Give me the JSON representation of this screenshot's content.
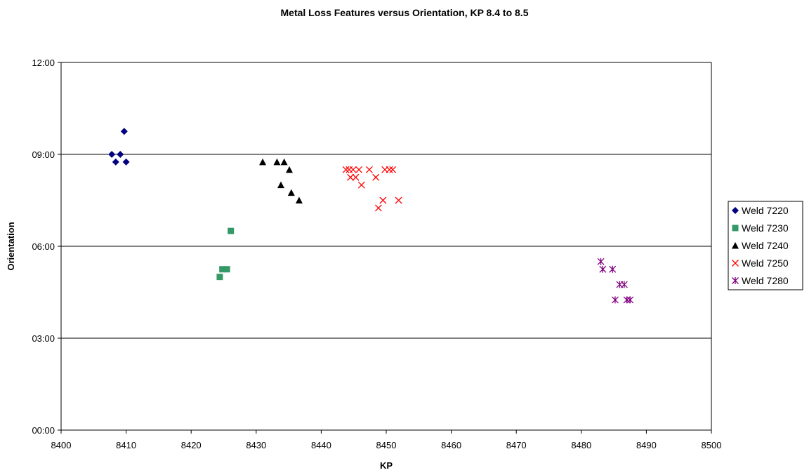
{
  "chart_data": {
    "type": "scatter",
    "title": "Metal Loss Features versus Orientation, KP 8.4 to 8.5",
    "xlabel": "KP",
    "ylabel": "Orientation",
    "xlim": [
      8400,
      8500
    ],
    "ylim": [
      0,
      12
    ],
    "x_ticks": [
      8400,
      8410,
      8420,
      8430,
      8440,
      8450,
      8460,
      8470,
      8480,
      8490,
      8500
    ],
    "y_ticks": [
      {
        "value": 0,
        "label": "00:00"
      },
      {
        "value": 3,
        "label": "03:00"
      },
      {
        "value": 6,
        "label": "06:00"
      },
      {
        "value": 9,
        "label": "09:00"
      },
      {
        "value": 12,
        "label": "12:00"
      }
    ],
    "grid": "horizontal",
    "legend_position": "right",
    "series": [
      {
        "name": "Weld 7220",
        "marker": "diamond",
        "color": "#000080",
        "points": [
          [
            8407.8,
            9.0
          ],
          [
            8408.4,
            8.75
          ],
          [
            8409.1,
            9.0
          ],
          [
            8409.7,
            9.75
          ],
          [
            8410.0,
            8.75
          ]
        ]
      },
      {
        "name": "Weld 7230",
        "marker": "square",
        "color": "#339966",
        "points": [
          [
            8424.4,
            5.0
          ],
          [
            8424.8,
            5.25
          ],
          [
            8425.5,
            5.25
          ],
          [
            8426.1,
            6.5
          ]
        ]
      },
      {
        "name": "Weld 7240",
        "marker": "triangle",
        "color": "#000000",
        "points": [
          [
            8431.0,
            8.75
          ],
          [
            8433.2,
            8.75
          ],
          [
            8433.8,
            8.0
          ],
          [
            8434.3,
            8.75
          ],
          [
            8435.1,
            8.5
          ],
          [
            8435.4,
            7.75
          ],
          [
            8436.6,
            7.5
          ]
        ]
      },
      {
        "name": "Weld 7250",
        "marker": "x",
        "color": "#ff0000",
        "points": [
          [
            8443.8,
            8.5
          ],
          [
            8444.3,
            8.5
          ],
          [
            8444.5,
            8.25
          ],
          [
            8444.9,
            8.5
          ],
          [
            8445.3,
            8.25
          ],
          [
            8445.8,
            8.5
          ],
          [
            8446.2,
            8.0
          ],
          [
            8447.4,
            8.5
          ],
          [
            8448.4,
            8.25
          ],
          [
            8448.8,
            7.25
          ],
          [
            8449.5,
            7.5
          ],
          [
            8449.8,
            8.5
          ],
          [
            8450.5,
            8.5
          ],
          [
            8451.0,
            8.5
          ],
          [
            8451.9,
            7.5
          ]
        ]
      },
      {
        "name": "Weld 7280",
        "marker": "star",
        "color": "#800080",
        "points": [
          [
            8483.0,
            5.5
          ],
          [
            8483.3,
            5.25
          ],
          [
            8484.8,
            5.25
          ],
          [
            8485.2,
            4.25
          ],
          [
            8485.9,
            4.75
          ],
          [
            8486.6,
            4.75
          ],
          [
            8487.0,
            4.25
          ],
          [
            8487.5,
            4.25
          ]
        ]
      }
    ]
  }
}
